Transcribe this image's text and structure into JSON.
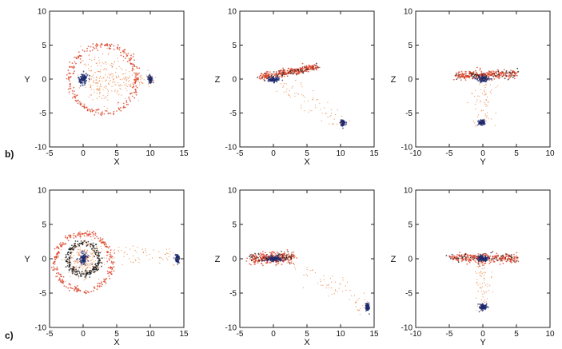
{
  "row_labels": [
    "b)",
    "c)"
  ],
  "colors": {
    "red_particles": "#d9381e",
    "orange_particles": "#e8732a",
    "blue_particles": "#1c2a6e",
    "dark_particles": "#141414"
  },
  "chart_data": [
    {
      "type": "scatter",
      "panel": "b-xy",
      "xlabel": "X",
      "ylabel": "Y",
      "xlim": [
        -5,
        15
      ],
      "ylim": [
        -10,
        10
      ],
      "xticks": [
        "-5",
        "0",
        "5",
        "10",
        "15"
      ],
      "yticks": [
        "10",
        "5",
        "0",
        "-5",
        "-10"
      ],
      "features": [
        {
          "kind": "ring",
          "center": [
            3,
            0
          ],
          "radius": 5,
          "color": "red"
        },
        {
          "kind": "cloud",
          "center": [
            3,
            0
          ],
          "spread": [
            3.2,
            3.2
          ],
          "color": "orange"
        },
        {
          "kind": "core",
          "center": [
            0,
            0
          ],
          "spread": [
            0.7,
            0.9
          ],
          "color": "blue"
        },
        {
          "kind": "core",
          "center": [
            10,
            0
          ],
          "spread": [
            0.3,
            0.5
          ],
          "color": "blue"
        },
        {
          "kind": "tail",
          "from": [
            5,
            0
          ],
          "to": [
            10,
            0
          ],
          "color": "orange"
        }
      ]
    },
    {
      "type": "scatter",
      "panel": "b-xz",
      "xlabel": "X",
      "ylabel": "Z",
      "xlim": [
        -5,
        15
      ],
      "ylim": [
        -10,
        10
      ],
      "xticks": [
        "-5",
        "0",
        "5",
        "10",
        "15"
      ],
      "yticks": [
        "10",
        "5",
        "0",
        "-5",
        "-10"
      ],
      "features": [
        {
          "kind": "band",
          "from": [
            -2,
            0.3
          ],
          "to": [
            6.5,
            1.8
          ],
          "width": 0.6,
          "color": "red"
        },
        {
          "kind": "core",
          "center": [
            0,
            -0.1
          ],
          "spread": [
            0.9,
            0.4
          ],
          "color": "blue"
        },
        {
          "kind": "core",
          "center": [
            10.3,
            -6.5
          ],
          "spread": [
            0.3,
            0.4
          ],
          "color": "blue"
        },
        {
          "kind": "tail",
          "from": [
            1,
            -0.5
          ],
          "to": [
            10,
            -6.3
          ],
          "color": "orange"
        }
      ]
    },
    {
      "type": "scatter",
      "panel": "b-yz",
      "xlabel": "Y",
      "ylabel": "Z",
      "xlim": [
        -10,
        10
      ],
      "ylim": [
        -10,
        10
      ],
      "xticks": [
        "-10",
        "-5",
        "0",
        "5",
        "10"
      ],
      "yticks": [
        "10",
        "5",
        "0",
        "-5",
        "-10"
      ],
      "features": [
        {
          "kind": "band",
          "from": [
            -4,
            0.5
          ],
          "to": [
            5,
            0.8
          ],
          "width": 0.7,
          "color": "red"
        },
        {
          "kind": "core",
          "center": [
            0,
            0
          ],
          "spread": [
            0.8,
            0.4
          ],
          "color": "blue"
        },
        {
          "kind": "core",
          "center": [
            -0.2,
            -6.4
          ],
          "spread": [
            0.5,
            0.4
          ],
          "color": "blue"
        },
        {
          "kind": "tail",
          "from": [
            0,
            -0.5
          ],
          "to": [
            0,
            -6
          ],
          "color": "orange"
        }
      ]
    },
    {
      "type": "scatter",
      "panel": "c-xy",
      "xlabel": "X",
      "ylabel": "Y",
      "xlim": [
        -5,
        15
      ],
      "ylim": [
        -10,
        10
      ],
      "xticks": [
        "-5",
        "0",
        "5",
        "10",
        "15"
      ],
      "yticks": [
        "10",
        "5",
        "0",
        "-5",
        "-10"
      ],
      "features": [
        {
          "kind": "ring",
          "center": [
            0,
            -0.5
          ],
          "radius": 4.2,
          "color": "red"
        },
        {
          "kind": "ring",
          "center": [
            0,
            0
          ],
          "radius": 2.3,
          "color": "dark"
        },
        {
          "kind": "cloud",
          "center": [
            0,
            0
          ],
          "spread": [
            2.5,
            2.5
          ],
          "color": "orange"
        },
        {
          "kind": "core",
          "center": [
            0,
            0
          ],
          "spread": [
            0.6,
            0.8
          ],
          "color": "blue"
        },
        {
          "kind": "core",
          "center": [
            14,
            0
          ],
          "spread": [
            0.3,
            0.6
          ],
          "color": "blue"
        },
        {
          "kind": "tail",
          "from": [
            3,
            1
          ],
          "to": [
            14,
            0
          ],
          "color": "orange"
        }
      ]
    },
    {
      "type": "scatter",
      "panel": "c-xz",
      "xlabel": "X",
      "ylabel": "Z",
      "xlim": [
        -5,
        15
      ],
      "ylim": [
        -10,
        10
      ],
      "xticks": [
        "-5",
        "0",
        "5",
        "10",
        "15"
      ],
      "yticks": [
        "10",
        "5",
        "0",
        "-5",
        "-10"
      ],
      "features": [
        {
          "kind": "band",
          "from": [
            -3.5,
            0.1
          ],
          "to": [
            3,
            0.2
          ],
          "width": 0.9,
          "color": "red"
        },
        {
          "kind": "core",
          "center": [
            0,
            0
          ],
          "spread": [
            1.2,
            0.4
          ],
          "color": "blue"
        },
        {
          "kind": "core",
          "center": [
            14,
            -7
          ],
          "spread": [
            0.3,
            0.5
          ],
          "color": "blue"
        },
        {
          "kind": "tail",
          "from": [
            3,
            -0.5
          ],
          "to": [
            14,
            -7
          ],
          "color": "orange"
        }
      ]
    },
    {
      "type": "scatter",
      "panel": "c-yz",
      "xlabel": "Y",
      "ylabel": "Z",
      "xlim": [
        -10,
        10
      ],
      "ylim": [
        -10,
        10
      ],
      "xticks": [
        "-10",
        "-5",
        "0",
        "5",
        "10"
      ],
      "yticks": [
        "10",
        "5",
        "0",
        "-5",
        "-10"
      ],
      "features": [
        {
          "kind": "band",
          "from": [
            -5,
            0.2
          ],
          "to": [
            5,
            0.0
          ],
          "width": 0.8,
          "color": "red"
        },
        {
          "kind": "core",
          "center": [
            0,
            0
          ],
          "spread": [
            0.8,
            0.4
          ],
          "color": "blue"
        },
        {
          "kind": "core",
          "center": [
            0,
            -7
          ],
          "spread": [
            0.6,
            0.4
          ],
          "color": "blue"
        },
        {
          "kind": "tail",
          "from": [
            0,
            -1
          ],
          "to": [
            0,
            -6.5
          ],
          "color": "orange"
        }
      ]
    }
  ]
}
